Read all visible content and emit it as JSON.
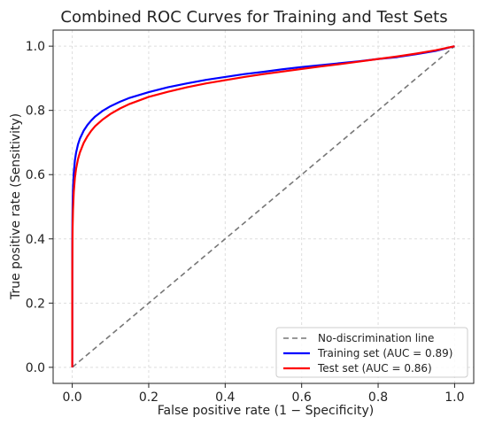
{
  "chart_data": {
    "type": "line",
    "title": "Combined ROC Curves for Training and Test Sets",
    "xlabel": "False positive rate (1 − Specificity)",
    "ylabel": "True positive rate (Sensitivity)",
    "xlim": [
      -0.05,
      1.05
    ],
    "ylim": [
      -0.05,
      1.05
    ],
    "xticks": [
      0.0,
      0.2,
      0.4,
      0.6,
      0.8,
      1.0
    ],
    "yticks": [
      0.0,
      0.2,
      0.4,
      0.6,
      0.8,
      1.0
    ],
    "grid": true,
    "legend_position": "lower-right",
    "series": [
      {
        "name": "No-discrimination line",
        "color": "#777777",
        "style": "dashed",
        "x": [
          0,
          1
        ],
        "y": [
          0,
          1
        ]
      },
      {
        "name": "Training set (AUC = 0.89)",
        "color": "#0000ff",
        "style": "solid",
        "x": [
          0,
          0.0001,
          0.0005,
          0.001,
          0.002,
          0.004,
          0.007,
          0.01,
          0.015,
          0.02,
          0.03,
          0.04,
          0.05,
          0.06,
          0.08,
          0.1,
          0.125,
          0.15,
          0.2,
          0.25,
          0.3,
          0.35,
          0.4,
          0.45,
          0.5,
          0.55,
          0.6,
          0.65,
          0.7,
          0.75,
          0.8,
          0.85,
          0.9,
          0.95,
          1.0
        ],
        "y": [
          0,
          0.364,
          0.46,
          0.507,
          0.556,
          0.606,
          0.645,
          0.668,
          0.694,
          0.712,
          0.737,
          0.755,
          0.769,
          0.781,
          0.799,
          0.813,
          0.827,
          0.839,
          0.857,
          0.872,
          0.884,
          0.895,
          0.904,
          0.913,
          0.92,
          0.928,
          0.935,
          0.941,
          0.947,
          0.953,
          0.96,
          0.966,
          0.975,
          0.985,
          1.0
        ]
      },
      {
        "name": "Test set (AUC = 0.86)",
        "color": "#ff0000",
        "style": "solid",
        "x": [
          0,
          0.0001,
          0.0005,
          0.001,
          0.002,
          0.004,
          0.007,
          0.01,
          0.015,
          0.02,
          0.03,
          0.04,
          0.05,
          0.06,
          0.08,
          0.1,
          0.125,
          0.15,
          0.2,
          0.25,
          0.3,
          0.35,
          0.4,
          0.45,
          0.5,
          0.55,
          0.6,
          0.65,
          0.7,
          0.75,
          0.8,
          0.85,
          0.9,
          0.95,
          1.0
        ],
        "y": [
          0,
          0.29,
          0.385,
          0.436,
          0.49,
          0.546,
          0.591,
          0.618,
          0.648,
          0.669,
          0.699,
          0.72,
          0.737,
          0.751,
          0.772,
          0.789,
          0.806,
          0.82,
          0.842,
          0.858,
          0.872,
          0.884,
          0.894,
          0.904,
          0.913,
          0.921,
          0.929,
          0.937,
          0.944,
          0.952,
          0.96,
          0.968,
          0.977,
          0.987,
          1.0
        ]
      }
    ]
  }
}
